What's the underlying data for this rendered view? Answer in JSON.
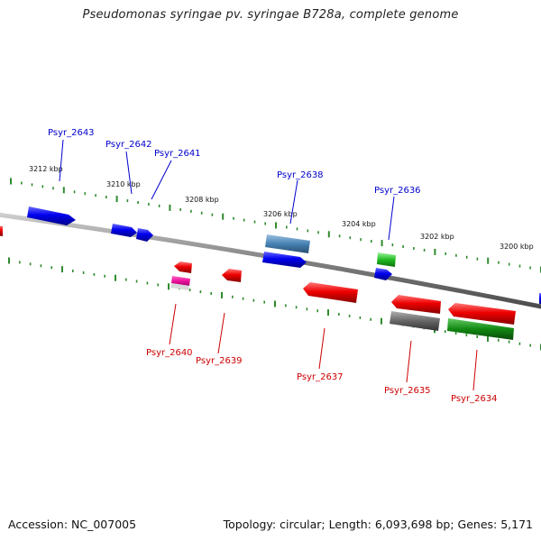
{
  "title": "Pseudomonas syringae pv. syringae B728a, complete genome",
  "footer": {
    "accession": "Accession: NC_007005",
    "summary": "Topology: circular; Length: 6,093,698 bp; Genes: 5,171"
  },
  "colors": {
    "backbone": "#8a8a8a",
    "tick": "#2e8b2e",
    "forward_label": "#0000cc",
    "reverse_label": "#cc0000"
  },
  "scale_labels": [
    "3212 kbp",
    "3210 kbp",
    "3208 kbp",
    "3206 kbp",
    "3204 kbp",
    "3202 kbp",
    "3200 kbp"
  ],
  "gene_labels": {
    "forward": [
      "Psyr_2643",
      "Psyr_2642",
      "Psyr_2641",
      "Psyr_2638",
      "Psyr_2636"
    ],
    "reverse": [
      "Psyr_2640",
      "Psyr_2639",
      "Psyr_2637",
      "Psyr_2635",
      "Psyr_2634"
    ]
  },
  "feature_colors": [
    "blue",
    "steelblue",
    "green",
    "red",
    "magenta",
    "gray",
    "darkgreen"
  ]
}
